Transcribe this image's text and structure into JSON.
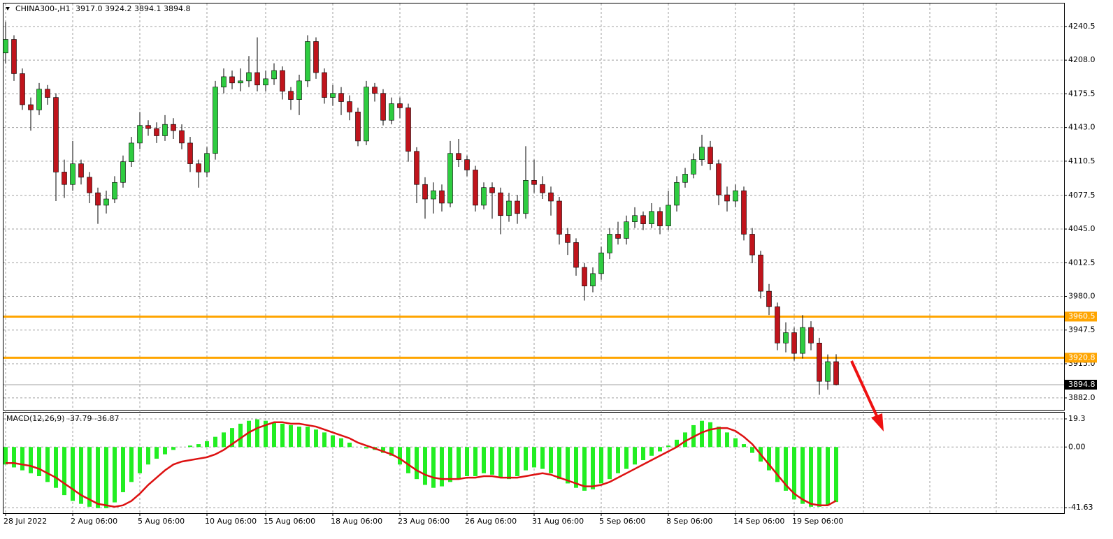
{
  "chart_data": [
    {
      "type": "candlestick",
      "title": "CHINA300-,H1",
      "title_values": "3917.0 3924.2 3894.1 3894.8",
      "categories": [
        "28 Jul 2022",
        null,
        null,
        null,
        null,
        null,
        null,
        null,
        "2 Aug 06:00",
        null,
        null,
        null,
        null,
        null,
        null,
        null,
        "5 Aug 06:00",
        null,
        null,
        null,
        null,
        null,
        null,
        null,
        "10 Aug 06:00",
        null,
        null,
        null,
        null,
        null,
        null,
        "15 Aug 06:00",
        null,
        null,
        null,
        null,
        null,
        null,
        null,
        "18 Aug 06:00",
        null,
        null,
        null,
        null,
        null,
        null,
        null,
        "23 Aug 06:00",
        null,
        null,
        null,
        null,
        null,
        null,
        null,
        "26 Aug 06:00",
        null,
        null,
        null,
        null,
        null,
        null,
        null,
        "31 Aug 06:00",
        null,
        null,
        null,
        null,
        null,
        null,
        null,
        "5 Sep 06:00",
        null,
        null,
        null,
        null,
        null,
        null,
        null,
        "8 Sep 06:00",
        null,
        null,
        null,
        null,
        null,
        null,
        null,
        "14 Sep 06:00",
        null,
        null,
        null,
        null,
        null,
        null,
        "19 Sep 06:00",
        null,
        null,
        null,
        null,
        null
      ],
      "open": [
        4215,
        4228,
        4195,
        4165,
        4160,
        4180,
        4172,
        4100,
        4088,
        4108,
        4095,
        4080,
        4068,
        4074,
        4090,
        4110,
        4128,
        4145,
        4142,
        4135,
        4146,
        4140,
        4128,
        4108,
        4100,
        4118,
        4182,
        4192,
        4186,
        4188,
        4196,
        4184,
        4190,
        4198,
        4178,
        4170,
        4188,
        4226,
        4196,
        4172,
        4176,
        4168,
        4158,
        4130,
        4182,
        4176,
        4150,
        4166,
        4162,
        4120,
        4088,
        4074,
        4082,
        4070,
        4118,
        4112,
        4102,
        4068,
        4085,
        4080,
        4058,
        4072,
        4060,
        4092,
        4088,
        4080,
        4072,
        4040,
        4032,
        4008,
        3990,
        4002,
        4022,
        4040,
        4036,
        4052,
        4058,
        4050,
        4062,
        4048,
        4068,
        4090,
        4098,
        4112,
        4124,
        4108,
        4078,
        4072,
        4082,
        4040,
        4020,
        3985,
        3970,
        3935,
        3945,
        3925,
        3950,
        3935,
        3898,
        3917
      ],
      "high": [
        4245,
        4232,
        4200,
        4172,
        4186,
        4184,
        4176,
        4112,
        4130,
        4112,
        4100,
        4085,
        4082,
        4096,
        4116,
        4134,
        4158,
        4150,
        4148,
        4155,
        4152,
        4146,
        4134,
        4112,
        4124,
        4188,
        4200,
        4198,
        4200,
        4212,
        4230,
        4198,
        4205,
        4202,
        4182,
        4194,
        4232,
        4230,
        4200,
        4184,
        4182,
        4174,
        4162,
        4188,
        4186,
        4180,
        4172,
        4172,
        4166,
        4124,
        4095,
        4090,
        4088,
        4130,
        4132,
        4116,
        4106,
        4090,
        4090,
        4085,
        4080,
        4078,
        4125,
        4112,
        4096,
        4086,
        4076,
        4046,
        4036,
        4012,
        4008,
        4028,
        4046,
        4052,
        4058,
        4066,
        4062,
        4070,
        4066,
        4082,
        4096,
        4104,
        4118,
        4136,
        4130,
        4112,
        4086,
        4088,
        4086,
        4046,
        4024,
        3992,
        3974,
        3955,
        3950,
        3962,
        3956,
        3940,
        3924,
        3924.2
      ],
      "low": [
        4205,
        4188,
        4160,
        4140,
        4155,
        4165,
        4072,
        4075,
        4082,
        4088,
        4070,
        4050,
        4060,
        4070,
        4085,
        4105,
        4122,
        4135,
        4128,
        4130,
        4132,
        4122,
        4100,
        4085,
        4095,
        4112,
        4176,
        4180,
        4178,
        4182,
        4178,
        4178,
        4184,
        4170,
        4160,
        4155,
        4182,
        4190,
        4166,
        4164,
        4155,
        4150,
        4125,
        4126,
        4168,
        4145,
        4146,
        4152,
        4110,
        4070,
        4055,
        4060,
        4062,
        4066,
        4105,
        4096,
        4062,
        4064,
        4055,
        4040,
        4052,
        4050,
        4055,
        4080,
        4074,
        4058,
        4030,
        4020,
        4000,
        3976,
        3984,
        3996,
        4016,
        4030,
        4030,
        4046,
        4044,
        4046,
        4040,
        4044,
        4062,
        4085,
        4094,
        4106,
        4102,
        4068,
        4062,
        4066,
        4034,
        4012,
        3978,
        3962,
        3928,
        3926,
        3918,
        3920,
        3928,
        3885,
        3890,
        3894.1
      ],
      "close": [
        4228,
        4195,
        4165,
        4160,
        4180,
        4172,
        4100,
        4088,
        4108,
        4095,
        4080,
        4068,
        4074,
        4090,
        4110,
        4128,
        4145,
        4142,
        4135,
        4146,
        4140,
        4128,
        4108,
        4100,
        4118,
        4182,
        4192,
        4186,
        4188,
        4196,
        4184,
        4190,
        4198,
        4178,
        4170,
        4188,
        4226,
        4196,
        4172,
        4176,
        4168,
        4158,
        4130,
        4182,
        4176,
        4150,
        4166,
        4162,
        4120,
        4088,
        4074,
        4082,
        4070,
        4118,
        4112,
        4102,
        4068,
        4085,
        4080,
        4058,
        4072,
        4060,
        4092,
        4088,
        4080,
        4072,
        4040,
        4032,
        4008,
        3990,
        4002,
        4022,
        4040,
        4036,
        4052,
        4058,
        4050,
        4062,
        4048,
        4068,
        4090,
        4098,
        4112,
        4124,
        4108,
        4078,
        4072,
        4082,
        4040,
        4020,
        3985,
        3970,
        3935,
        3945,
        3925,
        3950,
        3935,
        3898,
        3917,
        3894.8
      ],
      "up_color": "#2ecc40",
      "down_color": "#c0141c",
      "ylim": [
        3870.5,
        4262.7
      ],
      "yticks": [
        4240.5,
        {
          "value": 4208,
          "label": "4208.0"
        },
        4175.5,
        {
          "value": 4143,
          "label": "4143.0"
        },
        4110.5,
        4077.5,
        {
          "value": 4045,
          "label": "4045.0"
        },
        4012.5,
        {
          "value": 3980,
          "label": "3980.0"
        },
        3947.5,
        {
          "value": 3915,
          "label": "3915.0"
        },
        {
          "value": 3882,
          "label": "3882.0"
        }
      ],
      "grid": true,
      "levels": [
        {
          "value": 3960.5,
          "color": "#ffa500"
        },
        {
          "value": 3920.8,
          "color": "#ffa500"
        }
      ],
      "current_price": 3894.8
    },
    {
      "type": "macd",
      "title": "MACD(12,26,9) -37.79 -36.87",
      "histogram": {
        "color": "#22ee22",
        "values": [
          -12,
          -14,
          -16,
          -18,
          -20,
          -24,
          -28,
          -33,
          -37,
          -39,
          -41,
          -42,
          -42,
          -38,
          -31,
          -24,
          -18,
          -12,
          -8,
          -5,
          -2,
          0,
          1,
          2,
          4,
          7,
          10,
          13,
          16,
          18,
          19,
          18,
          17,
          16,
          15,
          14,
          14,
          12,
          10,
          8,
          6,
          3,
          0,
          -1,
          -2,
          -4,
          -6,
          -12,
          -18,
          -22,
          -26,
          -28,
          -27,
          -24,
          -22,
          -20,
          -20,
          -18,
          -19,
          -21,
          -22,
          -20,
          -16,
          -14,
          -15,
          -18,
          -22,
          -25,
          -28,
          -30,
          -29,
          -25,
          -22,
          -18,
          -15,
          -12,
          -9,
          -6,
          -3,
          1,
          5,
          10,
          15,
          18,
          17,
          14,
          10,
          6,
          2,
          -4,
          -10,
          -16,
          -24,
          -30,
          -36,
          -39,
          -41,
          -41,
          -40,
          -37.79
        ]
      },
      "signal": {
        "color": "#dd1111",
        "values": [
          -11,
          -11,
          -12,
          -13,
          -15,
          -18,
          -21,
          -25,
          -29,
          -33,
          -36,
          -39,
          -40,
          -41,
          -40,
          -37,
          -32,
          -26,
          -21,
          -16,
          -12,
          -10,
          -9,
          -8,
          -7,
          -5,
          -2,
          2,
          6,
          10,
          13,
          15,
          17,
          17,
          16,
          16,
          15,
          14,
          12,
          10,
          8,
          6,
          3,
          1,
          -1,
          -3,
          -5,
          -8,
          -12,
          -16,
          -19,
          -21,
          -22,
          -22,
          -22,
          -21,
          -21,
          -20,
          -20,
          -21,
          -21,
          -21,
          -20,
          -19,
          -18,
          -19,
          -21,
          -23,
          -25,
          -27,
          -27,
          -26,
          -24,
          -21,
          -18,
          -15,
          -12,
          -9,
          -6,
          -3,
          0,
          4,
          7,
          10,
          12,
          13,
          13,
          11,
          7,
          2,
          -5,
          -12,
          -19,
          -26,
          -32,
          -36,
          -39,
          -40,
          -40,
          -36.87
        ]
      },
      "ylim": [
        -45.4,
        23.6
      ],
      "yticks": [
        19.3,
        {
          "value": 0,
          "label": "0.00"
        },
        -41.63
      ]
    }
  ]
}
